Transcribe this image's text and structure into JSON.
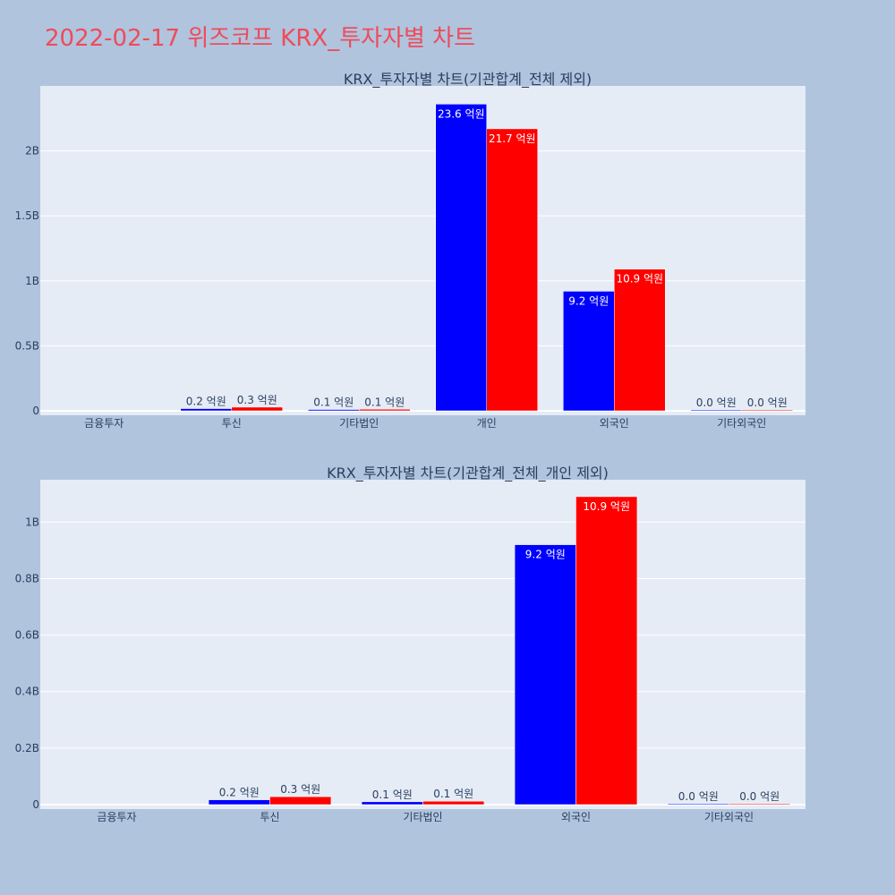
{
  "page_title": "2022-02-17 위즈코프 KRX_투자자별 차트",
  "colors": {
    "series_a": "#0000ff",
    "series_b": "#ff0000",
    "plot_bg": "#e5ecf6",
    "page_bg": "#b0c4de",
    "title": "#ef4b5a"
  },
  "chart_data": [
    {
      "type": "bar",
      "title": "KRX_투자자별 차트(기관합계_전체 제외)",
      "categories": [
        "금융투자",
        "투신",
        "기타법인",
        "개인",
        "외국인",
        "기타외국인"
      ],
      "series": [
        {
          "values": [
            0,
            0.017,
            0.01,
            2.36,
            0.92,
            0.0003
          ],
          "labels": [
            "",
            "0.2 억원",
            "0.1 억원",
            "23.6 억원",
            "9.2 억원",
            "0.0 억원"
          ]
        },
        {
          "values": [
            0,
            0.028,
            0.012,
            2.17,
            1.09,
            0.0003
          ],
          "labels": [
            "",
            "0.3 억원",
            "0.1 억원",
            "21.7 억원",
            "10.9 억원",
            "0.0 억원"
          ]
        }
      ],
      "ylim": [
        0,
        2.5
      ],
      "yticks": [
        0,
        0.5,
        1,
        1.5,
        2
      ],
      "ytick_labels": [
        "0",
        "0.5B",
        "1B",
        "1.5B",
        "2B"
      ],
      "grid": true
    },
    {
      "type": "bar",
      "title": "KRX_투자자별 차트(기관합계_전체_개인 제외)",
      "categories": [
        "금융투자",
        "투신",
        "기타법인",
        "외국인",
        "기타외국인"
      ],
      "series": [
        {
          "values": [
            0,
            0.017,
            0.01,
            0.92,
            0.0003
          ],
          "labels": [
            "",
            "0.2 억원",
            "0.1 억원",
            "9.2 억원",
            "0.0 억원"
          ]
        },
        {
          "values": [
            0,
            0.028,
            0.012,
            1.09,
            0.0003
          ],
          "labels": [
            "",
            "0.3 억원",
            "0.1 억원",
            "10.9 억원",
            "0.0 억원"
          ]
        }
      ],
      "ylim": [
        0,
        1.15
      ],
      "yticks": [
        0,
        0.2,
        0.4,
        0.6,
        0.8,
        1
      ],
      "ytick_labels": [
        "0",
        "0.2B",
        "0.4B",
        "0.6B",
        "0.8B",
        "1B"
      ],
      "grid": true
    }
  ]
}
